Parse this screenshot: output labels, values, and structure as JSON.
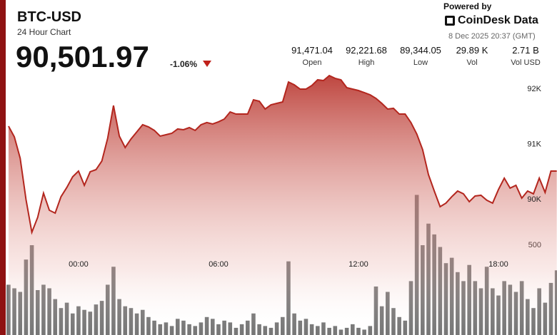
{
  "header": {
    "symbol": "BTC-USD",
    "subtitle": "24 Hour Chart",
    "price": "90,501.97",
    "change": "-1.06%"
  },
  "stats": [
    {
      "value": "91,471.04",
      "label": "Open"
    },
    {
      "value": "92,221.68",
      "label": "High"
    },
    {
      "value": "89,344.05",
      "label": "Low"
    },
    {
      "value": "29.89 K",
      "label": "Vol"
    },
    {
      "value": "2.71 B",
      "label": "Vol USD"
    }
  ],
  "branding": {
    "powered": "Powered by",
    "brand": "CoinDesk Data",
    "timestamp": "8 Dec 2025 20:37 (GMT)"
  },
  "chart_data": [
    {
      "type": "area",
      "color": "#b3261e",
      "x": [
        -3,
        -2.75,
        -2.5,
        -2.25,
        -2,
        -1.75,
        -1.5,
        -1.25,
        -1,
        -0.75,
        -0.5,
        -0.25,
        0,
        0.25,
        0.5,
        0.75,
        1,
        1.25,
        1.5,
        1.75,
        2,
        2.25,
        2.5,
        2.75,
        3,
        3.25,
        3.5,
        3.75,
        4,
        4.25,
        4.5,
        4.75,
        5,
        5.25,
        5.5,
        5.75,
        6,
        6.25,
        6.5,
        6.75,
        7,
        7.25,
        7.5,
        7.75,
        8,
        8.25,
        8.5,
        8.75,
        9,
        9.25,
        9.5,
        9.75,
        10,
        10.25,
        10.5,
        10.75,
        11,
        11.25,
        11.5,
        11.75,
        12,
        12.25,
        12.5,
        12.75,
        13,
        13.25,
        13.5,
        13.75,
        14,
        14.25,
        14.5,
        14.75,
        15,
        15.25,
        15.5,
        15.75,
        16,
        16.25,
        16.5,
        16.75,
        17,
        17.25,
        17.5,
        17.75,
        18,
        18.25,
        18.5,
        18.75,
        19,
        19.25,
        19.5,
        19.75,
        20,
        20.25,
        20.5
      ],
      "values": [
        91329,
        91136,
        90749,
        90001,
        89407,
        89678,
        90117,
        89807,
        89755,
        90052,
        90220,
        90413,
        90516,
        90258,
        90504,
        90542,
        90697,
        91110,
        91703,
        91149,
        90942,
        91097,
        91226,
        91355,
        91316,
        91252,
        91149,
        91174,
        91200,
        91278,
        91265,
        91303,
        91252,
        91355,
        91394,
        91368,
        91407,
        91458,
        91587,
        91548,
        91548,
        91548,
        91806,
        91780,
        91639,
        91716,
        91742,
        91768,
        92129,
        92077,
        92000,
        92000,
        92065,
        92168,
        92155,
        92245,
        92194,
        92168,
        92026,
        92000,
        91974,
        91936,
        91897,
        91832,
        91742,
        91639,
        91652,
        91548,
        91548,
        91394,
        91187,
        90904,
        90452,
        90155,
        89871,
        89936,
        90052,
        90155,
        90104,
        89962,
        90065,
        90078,
        89988,
        89936,
        90181,
        90388,
        90207,
        90258,
        90026,
        90155,
        90104,
        90388,
        90129,
        90516,
        90516
      ],
      "xlim": [
        -3.12,
        20.51
      ],
      "xticks": [
        {
          "value": 0,
          "label": "00:00"
        },
        {
          "value": 6,
          "label": "06:00"
        },
        {
          "value": 12,
          "label": "12:00"
        },
        {
          "value": 18,
          "label": "18:00"
        }
      ],
      "ylim": [
        89000,
        93600
      ],
      "yticks": [
        {
          "value": 90000,
          "label": "90K"
        },
        {
          "value": 91000,
          "label": "91K"
        },
        {
          "value": 92000,
          "label": "92K"
        }
      ]
    },
    {
      "type": "bar",
      "color": "#5e5e5e",
      "x": [
        -3,
        -2.75,
        -2.5,
        -2.25,
        -2,
        -1.75,
        -1.5,
        -1.25,
        -1,
        -0.75,
        -0.5,
        -0.25,
        0,
        0.25,
        0.5,
        0.75,
        1,
        1.25,
        1.5,
        1.75,
        2,
        2.25,
        2.5,
        2.75,
        3,
        3.25,
        3.5,
        3.75,
        4,
        4.25,
        4.5,
        4.75,
        5,
        5.25,
        5.5,
        5.75,
        6,
        6.25,
        6.5,
        6.75,
        7,
        7.25,
        7.5,
        7.75,
        8,
        8.25,
        8.5,
        8.75,
        9,
        9.25,
        9.5,
        9.75,
        10,
        10.25,
        10.5,
        10.75,
        11,
        11.25,
        11.5,
        11.75,
        12,
        12.25,
        12.5,
        12.75,
        13,
        13.25,
        13.5,
        13.75,
        14,
        14.25,
        14.5,
        14.75,
        15,
        15.25,
        15.5,
        15.75,
        16,
        16.25,
        16.5,
        16.75,
        17,
        17.25,
        17.5,
        17.75,
        18,
        18.25,
        18.5,
        18.75,
        19,
        19.25,
        19.5,
        19.75,
        20,
        20.25,
        20.5
      ],
      "values": [
        280,
        260,
        240,
        420,
        500,
        250,
        280,
        260,
        200,
        150,
        180,
        120,
        160,
        140,
        130,
        170,
        190,
        280,
        380,
        200,
        160,
        150,
        120,
        140,
        100,
        80,
        60,
        70,
        50,
        90,
        80,
        60,
        50,
        70,
        100,
        90,
        60,
        80,
        70,
        40,
        60,
        80,
        120,
        60,
        50,
        40,
        70,
        100,
        410,
        120,
        80,
        90,
        60,
        50,
        70,
        40,
        50,
        30,
        40,
        60,
        40,
        30,
        50,
        270,
        160,
        240,
        150,
        100,
        80,
        300,
        780,
        500,
        620,
        560,
        490,
        400,
        430,
        350,
        300,
        390,
        300,
        260,
        380,
        260,
        220,
        300,
        280,
        240,
        300,
        200,
        150,
        260,
        180,
        290,
        360
      ],
      "xlim": [
        -3.12,
        20.51
      ],
      "ylim": [
        0,
        1865
      ],
      "yticks": [
        500
      ]
    }
  ]
}
